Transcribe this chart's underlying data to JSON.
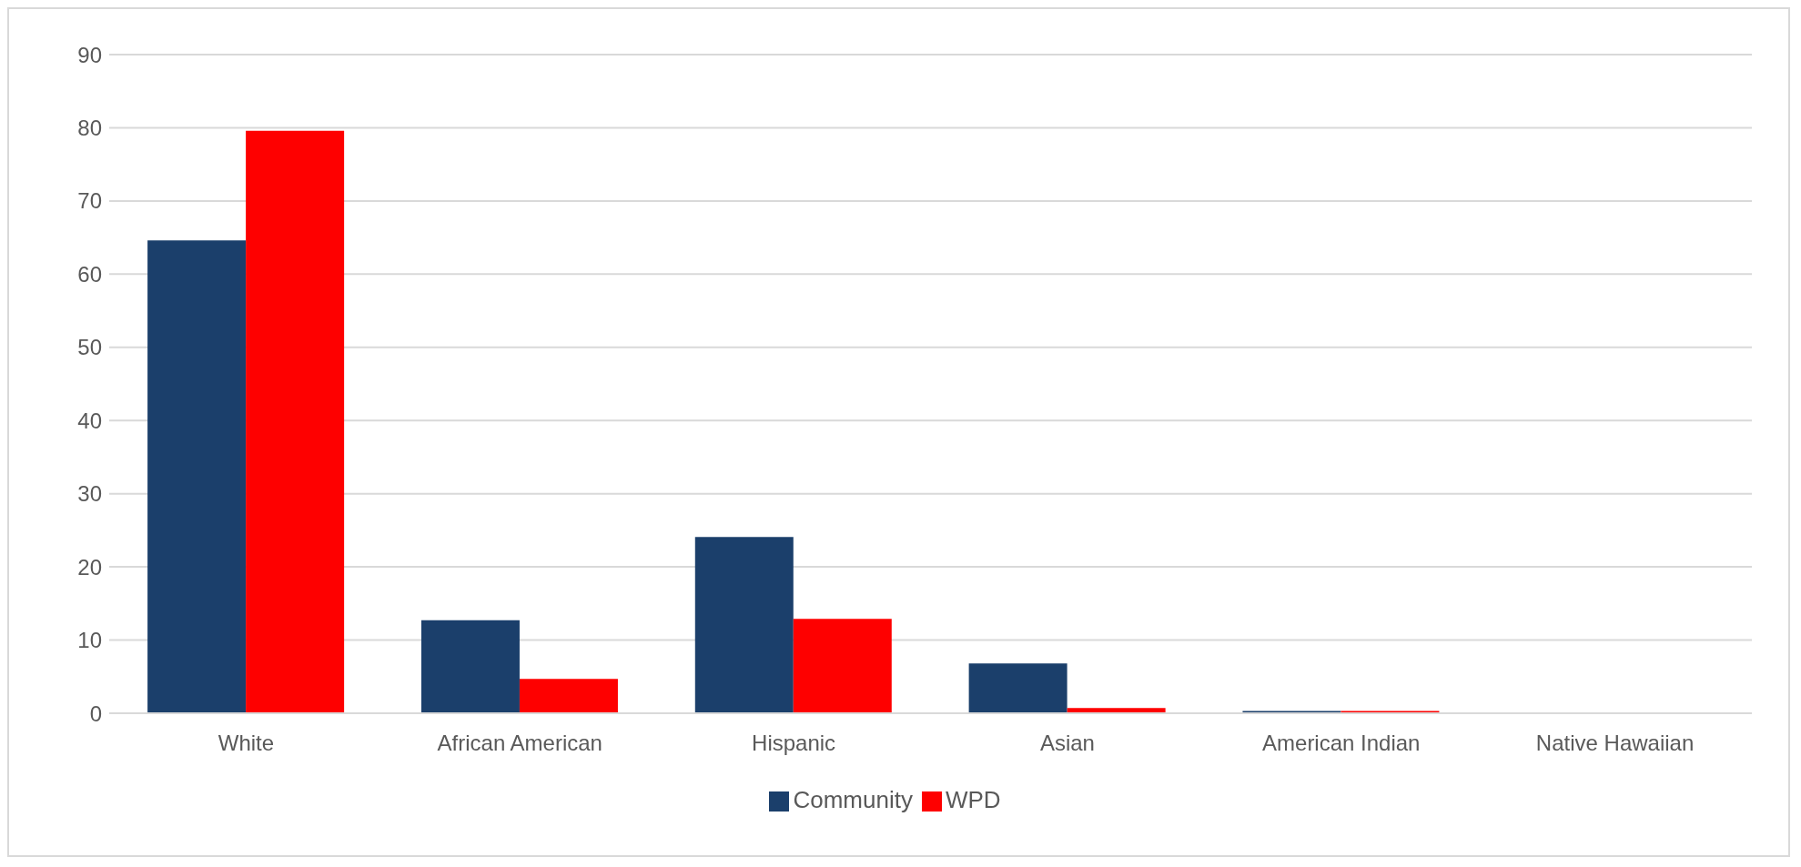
{
  "chart_data": {
    "type": "bar",
    "categories": [
      "White",
      "African American",
      "Hispanic",
      "Asian",
      "American Indian",
      "Native Hawaiian"
    ],
    "series": [
      {
        "name": "Community",
        "color": "#1b3f6b",
        "values": [
          64.6,
          12.7,
          24.1,
          6.8,
          0.3,
          0
        ]
      },
      {
        "name": "WPD",
        "color": "#fe0000",
        "values": [
          79.6,
          4.7,
          12.9,
          0.7,
          0.3,
          0
        ]
      }
    ],
    "ylim": [
      0,
      90
    ],
    "yticks": [
      0,
      10,
      20,
      30,
      40,
      50,
      60,
      70,
      80,
      90
    ],
    "grid": "y",
    "legend": "bottom"
  }
}
